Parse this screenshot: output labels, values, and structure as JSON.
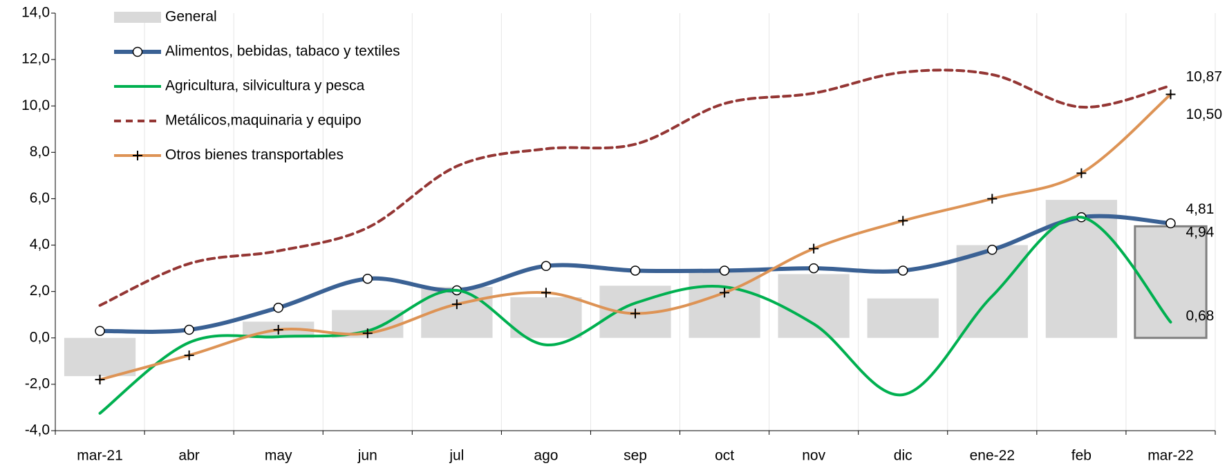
{
  "chart_data": {
    "type": "combo",
    "categories": [
      "mar-21",
      "abr",
      "may",
      "jun",
      "jul",
      "ago",
      "sep",
      "oct",
      "nov",
      "dic",
      "ene-22",
      "feb",
      "mar-22"
    ],
    "ylim": [
      -4,
      14
    ],
    "yticks": [
      {
        "value": -4,
        "label": "-4,0"
      },
      {
        "value": -2,
        "label": "-2,0"
      },
      {
        "value": 0,
        "label": "0,0"
      },
      {
        "value": 2,
        "label": "2,0"
      },
      {
        "value": 4,
        "label": "4,0"
      },
      {
        "value": 6,
        "label": "6,0"
      },
      {
        "value": 8,
        "label": "8,0"
      },
      {
        "value": 10,
        "label": "10,0"
      },
      {
        "value": 12,
        "label": "12,0"
      },
      {
        "value": 14,
        "label": "14,0"
      }
    ],
    "grid": true,
    "legend": "top-left",
    "series": [
      {
        "name": "General",
        "type": "bar",
        "color": "#d9d9d9",
        "values": [
          -1.65,
          0,
          0.7,
          1.2,
          2.2,
          1.75,
          2.25,
          2.9,
          2.75,
          1.7,
          4.0,
          5.95,
          4.81
        ],
        "value_labels": [
          null,
          null,
          null,
          null,
          null,
          null,
          null,
          null,
          null,
          null,
          null,
          null,
          "4,81"
        ]
      },
      {
        "name": "Alimentos, bebidas, tabaco y textiles",
        "type": "line",
        "color": "#3a6194",
        "marker": "circle",
        "values": [
          0.3,
          0.35,
          1.3,
          2.55,
          2.05,
          3.1,
          2.9,
          2.9,
          3.0,
          2.9,
          3.8,
          5.2,
          4.94
        ],
        "value_labels": [
          null,
          null,
          null,
          null,
          null,
          null,
          null,
          null,
          null,
          null,
          null,
          null,
          "4,94"
        ]
      },
      {
        "name": "Agricultura, silvicultura y pesca",
        "type": "line",
        "color": "#00b050",
        "values": [
          -3.25,
          -0.2,
          0.05,
          0.3,
          2.05,
          -0.3,
          1.5,
          2.2,
          0.6,
          -2.45,
          1.8,
          5.2,
          0.68
        ],
        "value_labels": [
          null,
          null,
          null,
          null,
          null,
          null,
          null,
          null,
          null,
          null,
          null,
          null,
          "0,68"
        ]
      },
      {
        "name": "Metálicos,maquinaria y equipo",
        "type": "line",
        "color": "#943634",
        "dash": true,
        "values": [
          1.4,
          3.2,
          3.75,
          4.75,
          7.4,
          8.15,
          8.35,
          10.1,
          10.55,
          11.45,
          11.35,
          9.95,
          10.87
        ],
        "value_labels": [
          null,
          null,
          null,
          null,
          null,
          null,
          null,
          null,
          null,
          null,
          null,
          null,
          "10,87"
        ]
      },
      {
        "name": "Otros bienes transportables",
        "type": "line",
        "color": "#dd9355",
        "marker": "plus",
        "values": [
          -1.8,
          -0.75,
          0.35,
          0.2,
          1.45,
          1.95,
          1.05,
          1.95,
          3.85,
          5.05,
          6.0,
          7.1,
          10.5
        ],
        "value_labels": [
          null,
          null,
          null,
          null,
          null,
          null,
          null,
          null,
          null,
          null,
          null,
          null,
          "10,50"
        ]
      }
    ]
  }
}
